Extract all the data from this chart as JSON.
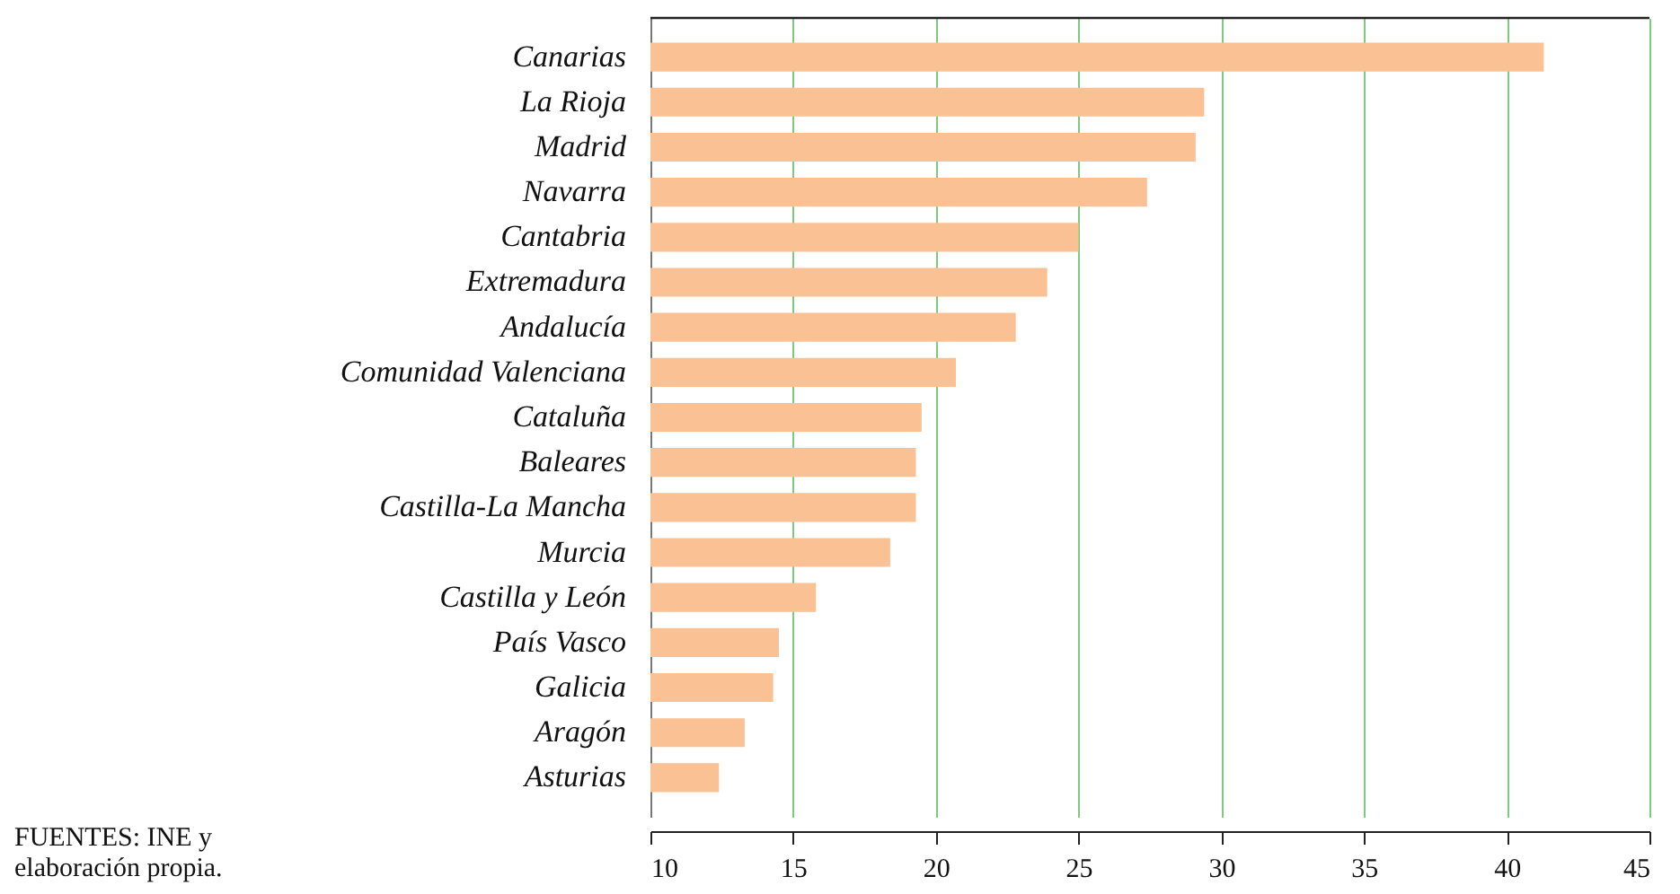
{
  "chart_data": {
    "type": "bar",
    "orientation": "horizontal",
    "categories": [
      "Canarias",
      "La Rioja",
      "Madrid",
      "Navarra",
      "Cantabria",
      "Extremadura",
      "Andalucía",
      "Comunidad Valenciana",
      "Cataluña",
      "Baleares",
      "Castilla-La Mancha",
      "Murcia",
      "Castilla y León",
      "País Vasco",
      "Galicia",
      "Aragón",
      "Asturias"
    ],
    "values": [
      41.3,
      29.4,
      29.1,
      27.4,
      25.0,
      23.9,
      22.8,
      20.7,
      19.5,
      19.3,
      19.3,
      18.4,
      15.8,
      14.5,
      14.3,
      13.3,
      12.4
    ],
    "color": "#f9c194",
    "xlim": [
      10,
      45
    ],
    "xticks": [
      10,
      15,
      20,
      25,
      30,
      35,
      40,
      45
    ],
    "grid": "x",
    "annotations": [
      "FUENTES: INE y elaboración propia."
    ]
  }
}
